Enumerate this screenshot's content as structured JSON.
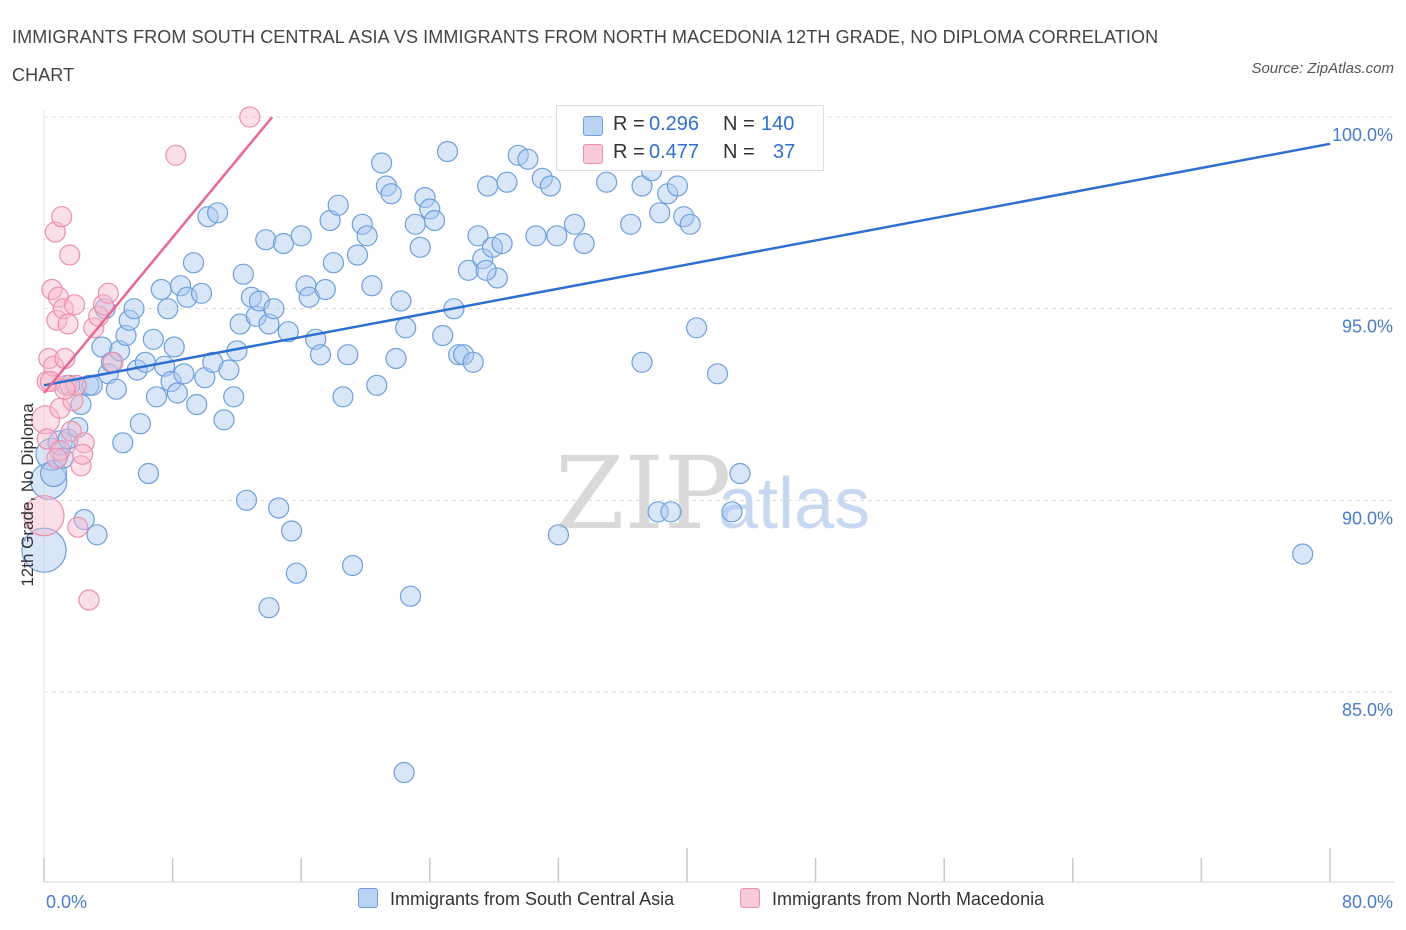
{
  "title": "IMMIGRANTS FROM SOUTH CENTRAL ASIA VS IMMIGRANTS FROM NORTH MACEDONIA 12TH GRADE, NO DIPLOMA CORRELATION CHART",
  "source": "Source: ZipAtlas.com",
  "watermark": {
    "zip": "ZIP",
    "atlas": "atlas"
  },
  "colors": {
    "blue": "#a9c8f0",
    "blue_stroke": "#6d9fdc",
    "blue_line": "#2f6fd0",
    "pink": "#f6b8cc",
    "pink_stroke": "#ec8fae",
    "pink_line": "#e8688f"
  },
  "legend": {
    "rows": [
      {
        "r_label": "R =",
        "r_value": "0.296",
        "n_label": "N =",
        "n_value": "140"
      },
      {
        "r_label": "R =",
        "r_value": "0.477",
        "n_label": "N =",
        "n_value": "37"
      }
    ]
  },
  "bottom_legend": [
    "Immigrants from South Central Asia",
    "Immigrants from North Macedonia"
  ],
  "chart_data": {
    "type": "scatter",
    "xlabel": "",
    "ylabel": "12th Grade, No Diploma",
    "xlim": [
      0,
      80
    ],
    "ylim": [
      80,
      100.5
    ],
    "x_tick_labels": [
      "0.0%",
      "80.0%"
    ],
    "y_ticks": [
      85,
      90,
      95,
      100
    ],
    "y_tick_labels": [
      "85.0%",
      "90.0%",
      "95.0%",
      "100.0%"
    ],
    "grid": true,
    "legend_position": "top-center",
    "series": [
      {
        "name": "Immigrants from South Central Asia",
        "color": "#a9c8f0",
        "trend": {
          "x": [
            0,
            80
          ],
          "y": [
            93.0,
            99.3
          ]
        },
        "points": [
          [
            0.0,
            88.7,
            22
          ],
          [
            0.3,
            90.5,
            18
          ],
          [
            0.5,
            91.2,
            16
          ],
          [
            0.6,
            90.7,
            13
          ],
          [
            1.0,
            91.5,
            12
          ],
          [
            1.2,
            91.1,
            10
          ],
          [
            1.5,
            91.6,
            10
          ],
          [
            1.6,
            93.0,
            10
          ],
          [
            2.1,
            91.9,
            10
          ],
          [
            2.3,
            92.5,
            10
          ],
          [
            2.5,
            89.5,
            10
          ],
          [
            2.8,
            93.0,
            10
          ],
          [
            3.0,
            93.0,
            10
          ],
          [
            3.3,
            89.1,
            10
          ],
          [
            3.6,
            94.0,
            10
          ],
          [
            3.8,
            95.0,
            10
          ],
          [
            4.0,
            93.3,
            10
          ],
          [
            4.2,
            93.6,
            10
          ],
          [
            4.5,
            92.9,
            10
          ],
          [
            4.7,
            93.9,
            10
          ],
          [
            4.9,
            91.5,
            10
          ],
          [
            5.1,
            94.3,
            10
          ],
          [
            5.3,
            94.7,
            10
          ],
          [
            5.6,
            95.0,
            10
          ],
          [
            5.8,
            93.4,
            10
          ],
          [
            6.0,
            92.0,
            10
          ],
          [
            6.3,
            93.6,
            10
          ],
          [
            6.5,
            90.7,
            10
          ],
          [
            6.8,
            94.2,
            10
          ],
          [
            7.0,
            92.7,
            10
          ],
          [
            7.3,
            95.5,
            10
          ],
          [
            7.5,
            93.5,
            10
          ],
          [
            7.7,
            95.0,
            10
          ],
          [
            7.9,
            93.1,
            10
          ],
          [
            8.1,
            94.0,
            10
          ],
          [
            8.3,
            92.8,
            10
          ],
          [
            8.5,
            95.6,
            10
          ],
          [
            8.7,
            93.3,
            10
          ],
          [
            8.9,
            95.3,
            10
          ],
          [
            9.3,
            96.2,
            10
          ],
          [
            9.5,
            92.5,
            10
          ],
          [
            9.8,
            95.4,
            10
          ],
          [
            10.0,
            93.2,
            10
          ],
          [
            10.2,
            97.4,
            10
          ],
          [
            10.5,
            93.6,
            10
          ],
          [
            10.8,
            97.5,
            10
          ],
          [
            11.2,
            92.1,
            10
          ],
          [
            11.5,
            93.4,
            10
          ],
          [
            11.8,
            92.7,
            10
          ],
          [
            12.0,
            93.9,
            10
          ],
          [
            12.2,
            94.6,
            10
          ],
          [
            12.4,
            95.9,
            10
          ],
          [
            12.6,
            90.0,
            10
          ],
          [
            12.9,
            95.3,
            10
          ],
          [
            13.2,
            94.8,
            10
          ],
          [
            13.4,
            95.2,
            10
          ],
          [
            13.8,
            96.8,
            10
          ],
          [
            14.0,
            94.6,
            10
          ],
          [
            14.3,
            95.0,
            10
          ],
          [
            14.6,
            89.8,
            10
          ],
          [
            14.9,
            96.7,
            10
          ],
          [
            15.2,
            94.4,
            10
          ],
          [
            15.4,
            89.2,
            10
          ],
          [
            15.7,
            88.1,
            10
          ],
          [
            16.0,
            96.9,
            10
          ],
          [
            16.3,
            95.6,
            10
          ],
          [
            16.5,
            95.3,
            10
          ],
          [
            16.9,
            94.2,
            10
          ],
          [
            17.2,
            93.8,
            10
          ],
          [
            17.5,
            95.5,
            10
          ],
          [
            17.8,
            97.3,
            10
          ],
          [
            18.0,
            96.2,
            10
          ],
          [
            18.3,
            97.7,
            10
          ],
          [
            18.6,
            92.7,
            10
          ],
          [
            18.9,
            93.8,
            10
          ],
          [
            19.2,
            88.3,
            10
          ],
          [
            19.5,
            96.4,
            10
          ],
          [
            19.8,
            97.2,
            10
          ],
          [
            20.1,
            96.9,
            10
          ],
          [
            20.4,
            95.6,
            10
          ],
          [
            20.7,
            93.0,
            10
          ],
          [
            21.0,
            98.8,
            10
          ],
          [
            21.3,
            98.2,
            10
          ],
          [
            21.6,
            98.0,
            10
          ],
          [
            21.9,
            93.7,
            10
          ],
          [
            22.2,
            95.2,
            10
          ],
          [
            22.5,
            94.5,
            10
          ],
          [
            22.8,
            87.5,
            10
          ],
          [
            23.1,
            97.2,
            10
          ],
          [
            23.4,
            96.6,
            10
          ],
          [
            23.7,
            97.9,
            10
          ],
          [
            24.0,
            97.6,
            10
          ],
          [
            24.3,
            97.3,
            10
          ],
          [
            24.8,
            94.3,
            10
          ],
          [
            25.1,
            99.1,
            10
          ],
          [
            25.5,
            95.0,
            10
          ],
          [
            25.8,
            93.8,
            10
          ],
          [
            26.1,
            93.8,
            10
          ],
          [
            26.4,
            96.0,
            10
          ],
          [
            26.7,
            93.6,
            10
          ],
          [
            27.0,
            96.9,
            10
          ],
          [
            27.3,
            96.3,
            10
          ],
          [
            27.6,
            98.2,
            10
          ],
          [
            27.9,
            96.6,
            10
          ],
          [
            28.2,
            95.8,
            10
          ],
          [
            28.5,
            96.7,
            10
          ],
          [
            28.8,
            98.3,
            10
          ],
          [
            29.5,
            99.0,
            10
          ],
          [
            30.1,
            98.9,
            10
          ],
          [
            30.6,
            96.9,
            10
          ],
          [
            31.0,
            98.4,
            10
          ],
          [
            31.5,
            98.2,
            10
          ],
          [
            31.9,
            96.9,
            10
          ],
          [
            32.5,
            100.0,
            10
          ],
          [
            33.0,
            97.2,
            10
          ],
          [
            33.6,
            96.7,
            10
          ],
          [
            34.2,
            100.0,
            10
          ],
          [
            35.0,
            98.3,
            10
          ],
          [
            35.5,
            99.1,
            10
          ],
          [
            36.0,
            99.2,
            10
          ],
          [
            36.5,
            97.2,
            10
          ],
          [
            37.2,
            98.2,
            10
          ],
          [
            37.8,
            98.6,
            10
          ],
          [
            38.3,
            97.5,
            10
          ],
          [
            38.8,
            98.0,
            10
          ],
          [
            39.4,
            98.2,
            10
          ],
          [
            39.8,
            97.4,
            10
          ],
          [
            40.2,
            97.2,
            10
          ],
          [
            40.6,
            94.5,
            10
          ],
          [
            22.4,
            82.9,
            10
          ],
          [
            37.2,
            93.6,
            10
          ],
          [
            38.2,
            89.7,
            10
          ],
          [
            39.0,
            89.7,
            10
          ],
          [
            32.0,
            89.1,
            10
          ],
          [
            27.5,
            96.0,
            10
          ],
          [
            41.9,
            93.3,
            10
          ],
          [
            43.3,
            90.7,
            10
          ],
          [
            42.8,
            89.7,
            10
          ],
          [
            78.3,
            88.6,
            10
          ],
          [
            14.0,
            87.2,
            10
          ]
        ]
      },
      {
        "name": "Immigrants from North Macedonia",
        "color": "#f6b8cc",
        "trend": {
          "x": [
            0,
            14.2
          ],
          "y": [
            92.8,
            100.0
          ]
        },
        "points": [
          [
            0.0,
            89.6,
            20
          ],
          [
            0.1,
            92.1,
            14
          ],
          [
            0.2,
            93.1,
            10
          ],
          [
            0.3,
            93.7,
            10
          ],
          [
            0.5,
            95.5,
            10
          ],
          [
            0.6,
            93.5,
            10
          ],
          [
            0.7,
            97.0,
            10
          ],
          [
            0.8,
            94.7,
            10
          ],
          [
            0.9,
            95.3,
            10
          ],
          [
            1.0,
            92.4,
            10
          ],
          [
            1.1,
            97.4,
            10
          ],
          [
            1.2,
            95.0,
            10
          ],
          [
            1.3,
            93.7,
            10
          ],
          [
            1.4,
            93.0,
            10
          ],
          [
            1.5,
            94.6,
            10
          ],
          [
            1.6,
            96.4,
            10
          ],
          [
            1.7,
            91.8,
            10
          ],
          [
            1.8,
            92.6,
            10
          ],
          [
            1.9,
            95.1,
            10
          ],
          [
            2.0,
            93.0,
            10
          ],
          [
            2.1,
            89.3,
            10
          ],
          [
            2.3,
            90.9,
            10
          ],
          [
            2.5,
            91.5,
            10
          ],
          [
            2.8,
            87.4,
            10
          ],
          [
            3.1,
            94.5,
            10
          ],
          [
            3.4,
            94.8,
            10
          ],
          [
            3.7,
            95.1,
            10
          ],
          [
            4.0,
            95.4,
            10
          ],
          [
            4.3,
            93.6,
            10
          ],
          [
            0.4,
            93.1,
            10
          ],
          [
            0.2,
            91.6,
            10
          ],
          [
            1.0,
            91.3,
            10
          ],
          [
            1.3,
            92.9,
            10
          ],
          [
            0.8,
            91.1,
            10
          ],
          [
            8.2,
            99.0,
            10
          ],
          [
            12.8,
            100.0,
            10
          ],
          [
            2.4,
            91.2,
            10
          ]
        ]
      }
    ]
  }
}
